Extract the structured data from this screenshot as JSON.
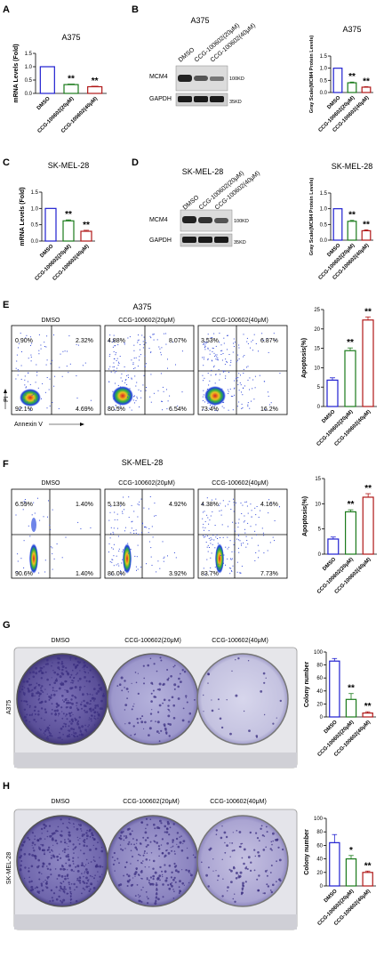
{
  "figure": {
    "panel_letters": [
      "A",
      "B",
      "C",
      "D",
      "E",
      "F",
      "G",
      "H"
    ],
    "panel_B": {
      "cell_line": "A375",
      "lanes": [
        "DMSO",
        "CCG-100602(20μM)",
        "CCG-100602(40μM)"
      ],
      "proteins": [
        "MCM4",
        "GAPDH"
      ],
      "markers": [
        "100KD",
        "35KD"
      ]
    },
    "panel_D": {
      "cell_line": "SK-MEL-28",
      "lanes": [
        "DMSO",
        "CCG-100602(20μM)",
        "CCG-100602(40μM)"
      ],
      "proteins": [
        "MCM4",
        "GAPDH"
      ],
      "markers": [
        "100KD",
        "35KD"
      ]
    },
    "panel_E": {
      "cell_line": "A375",
      "conditions": [
        "DMSO",
        "CCG-100602(20μM)",
        "CCG-100602(40μM)"
      ],
      "quadrants": [
        {
          "ul": "0.90%",
          "ur": "2.32%",
          "ll": "92.1%",
          "lr": "4.69%"
        },
        {
          "ul": "4.88%",
          "ur": "8.07%",
          "ll": "80.5%",
          "lr": "6.54%"
        },
        {
          "ul": "3.53%",
          "ur": "6.87%",
          "ll": "73.4%",
          "lr": "16.2%"
        }
      ],
      "y_axis": "PI",
      "x_axis": "Annexin V"
    },
    "panel_F": {
      "cell_line": "SK-MEL-28",
      "conditions": [
        "DMSO",
        "CCG-100602(20μM)",
        "CCG-100602(40μM)"
      ],
      "quadrants": [
        {
          "ul": "6.59%",
          "ur": "1.40%",
          "ll": "90.6%",
          "lr": "1.40%"
        },
        {
          "ul": "5.13%",
          "ur": "4.92%",
          "ll": "86.0%",
          "lr": "3.92%"
        },
        {
          "ul": "4.38%",
          "ur": "4.16%",
          "ll": "83.7%",
          "lr": "7.73%"
        }
      ]
    },
    "panel_G": {
      "cell_line": "A375",
      "conditions": [
        "DMSO",
        "CCG-100602(20μM)",
        "CCG-100602(40μM)"
      ]
    },
    "panel_H": {
      "cell_line": "SK-MEL-28",
      "conditions": [
        "DMSO",
        "CCG-100602(20μM)",
        "CCG-100602(40μM)"
      ]
    }
  },
  "colors": {
    "dmso": "#1f1fd0",
    "ccg20": "#1a7a1a",
    "ccg40": "#b01818",
    "plate_purple": "#6b5fa8"
  },
  "chart_data": [
    {
      "id": "A",
      "type": "bar",
      "title": "A375",
      "ylabel": "mRNA Levels (Fold)",
      "ylim": [
        0,
        1.5
      ],
      "yticks": [
        0.0,
        0.5,
        1.0,
        1.5
      ],
      "categories": [
        "DMSO",
        "CCG-100602(20μM)",
        "CCG-100602(40μM)"
      ],
      "values": [
        1.0,
        0.33,
        0.25
      ],
      "errors": [
        0,
        0.02,
        0.02
      ],
      "sig": [
        "",
        "**",
        "**"
      ]
    },
    {
      "id": "B",
      "type": "bar",
      "title": "A375",
      "ylabel": "Gray Scale(MCM4 Protein Levels)",
      "ylim": [
        0,
        1.5
      ],
      "yticks": [
        0.0,
        0.5,
        1.0,
        1.5
      ],
      "categories": [
        "DMSO",
        "CCG-100602(20μM)",
        "CCG-100602(40μM)"
      ],
      "values": [
        1.0,
        0.4,
        0.22
      ],
      "errors": [
        0,
        0.03,
        0.02
      ],
      "sig": [
        "",
        "**",
        "**"
      ]
    },
    {
      "id": "C",
      "type": "bar",
      "title": "SK-MEL-28",
      "ylabel": "mRNA Levels (Fold)",
      "ylim": [
        0,
        1.5
      ],
      "yticks": [
        0.0,
        0.5,
        1.0,
        1.5
      ],
      "categories": [
        "DMSO",
        "CCG-100602(20μM)",
        "CCG-100602(40μM)"
      ],
      "values": [
        1.0,
        0.62,
        0.3
      ],
      "errors": [
        0,
        0.03,
        0.03
      ],
      "sig": [
        "",
        "**",
        "**"
      ]
    },
    {
      "id": "D",
      "type": "bar",
      "title": "SK-MEL-28",
      "ylabel": "Gray Scale(MCM4 Protein Levels)",
      "ylim": [
        0,
        1.5
      ],
      "yticks": [
        0.0,
        0.5,
        1.0,
        1.5
      ],
      "categories": [
        "DMSO",
        "CCG-100602(20μM)",
        "CCG-100602(40μM)"
      ],
      "values": [
        1.0,
        0.6,
        0.3
      ],
      "errors": [
        0,
        0.03,
        0.03
      ],
      "sig": [
        "",
        "**",
        "**"
      ]
    },
    {
      "id": "E",
      "type": "bar",
      "title": "",
      "ylabel": "Apoptosis(%)",
      "ylim": [
        0,
        25
      ],
      "yticks": [
        0,
        5,
        10,
        15,
        20,
        25
      ],
      "categories": [
        "DMSO",
        "CCG-100602(20μM)",
        "CCG-100602(40μM)"
      ],
      "values": [
        6.8,
        14.4,
        22.3
      ],
      "errors": [
        0.6,
        0.7,
        0.8
      ],
      "sig": [
        "",
        "**",
        "**"
      ]
    },
    {
      "id": "F",
      "type": "bar",
      "title": "",
      "ylabel": "Apoptosis(%)",
      "ylim": [
        0,
        15
      ],
      "yticks": [
        0,
        5,
        10,
        15
      ],
      "categories": [
        "DMSO",
        "CCG-100602(20μM)",
        "CCG-100602(40μM)"
      ],
      "values": [
        3.0,
        8.4,
        11.3
      ],
      "errors": [
        0.4,
        0.4,
        0.7
      ],
      "sig": [
        "",
        "**",
        "**"
      ]
    },
    {
      "id": "G",
      "type": "bar",
      "title": "",
      "ylabel": "Colony number",
      "ylim": [
        0,
        100
      ],
      "yticks": [
        0,
        20,
        40,
        60,
        80,
        100
      ],
      "categories": [
        "DMSO",
        "CCG-100602(20μM)",
        "CCG-100602(40μM)"
      ],
      "values": [
        86,
        27,
        6
      ],
      "errors": [
        4,
        9,
        2
      ],
      "sig": [
        "",
        "**",
        "**"
      ]
    },
    {
      "id": "H",
      "type": "bar",
      "title": "",
      "ylabel": "Colony number",
      "ylim": [
        0,
        100
      ],
      "yticks": [
        0,
        20,
        40,
        60,
        80,
        100
      ],
      "categories": [
        "DMSO",
        "CCG-100602(20μM)",
        "CCG-100602(40μM)"
      ],
      "values": [
        64,
        40,
        20
      ],
      "errors": [
        12,
        5,
        2
      ],
      "sig": [
        "",
        "*",
        "**"
      ]
    }
  ]
}
